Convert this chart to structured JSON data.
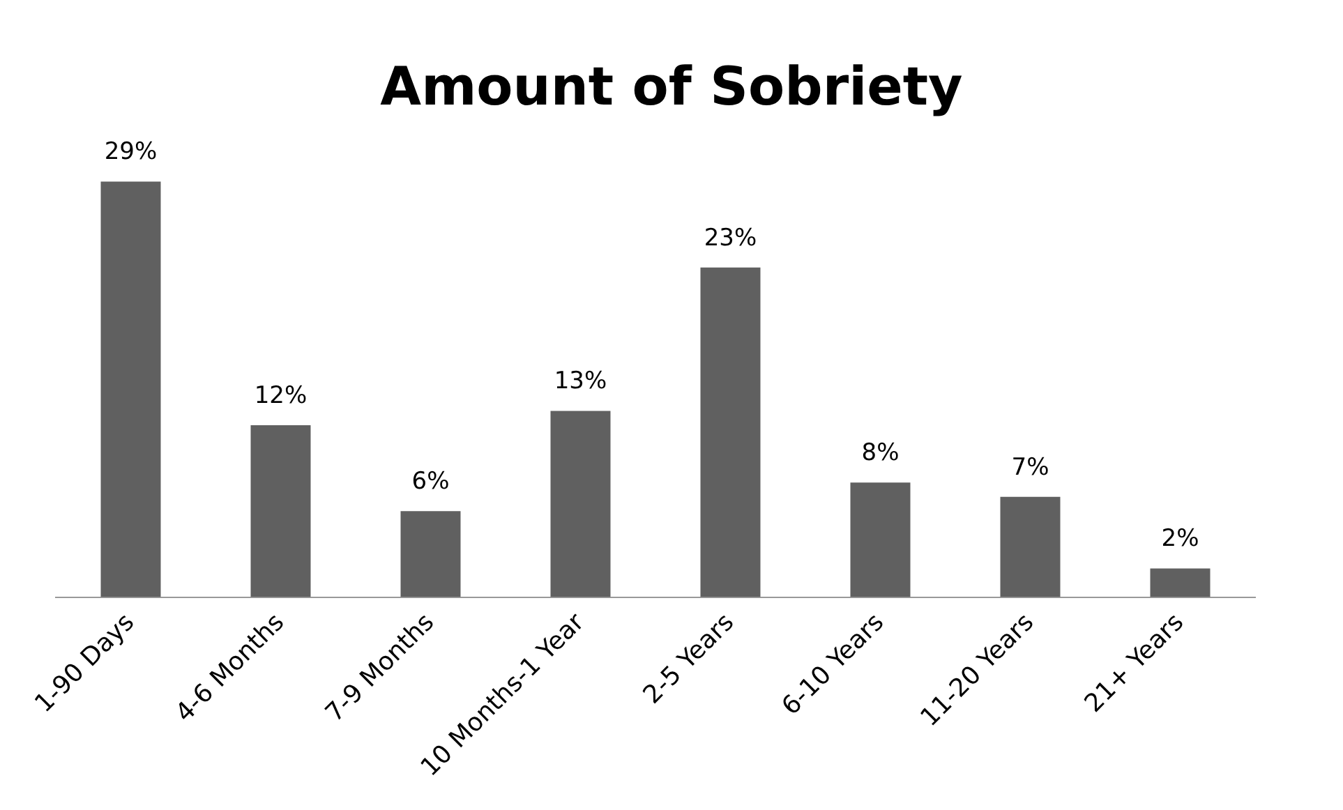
{
  "chart_data": {
    "type": "bar",
    "title": "Amount of Sobriety",
    "categories": [
      "1-90 Days",
      "4-6 Months",
      "7-9 Months",
      "10 Months-1 Year",
      "2-5 Years",
      "6-10 Years",
      "11-20 Years",
      "21+ Years"
    ],
    "values": [
      29,
      12,
      6,
      13,
      23,
      8,
      7,
      2
    ],
    "value_labels": [
      "29%",
      "12%",
      "6%",
      "13%",
      "23%",
      "8%",
      "7%",
      "2%"
    ],
    "color": "#606060",
    "grid": false,
    "legend": false
  }
}
